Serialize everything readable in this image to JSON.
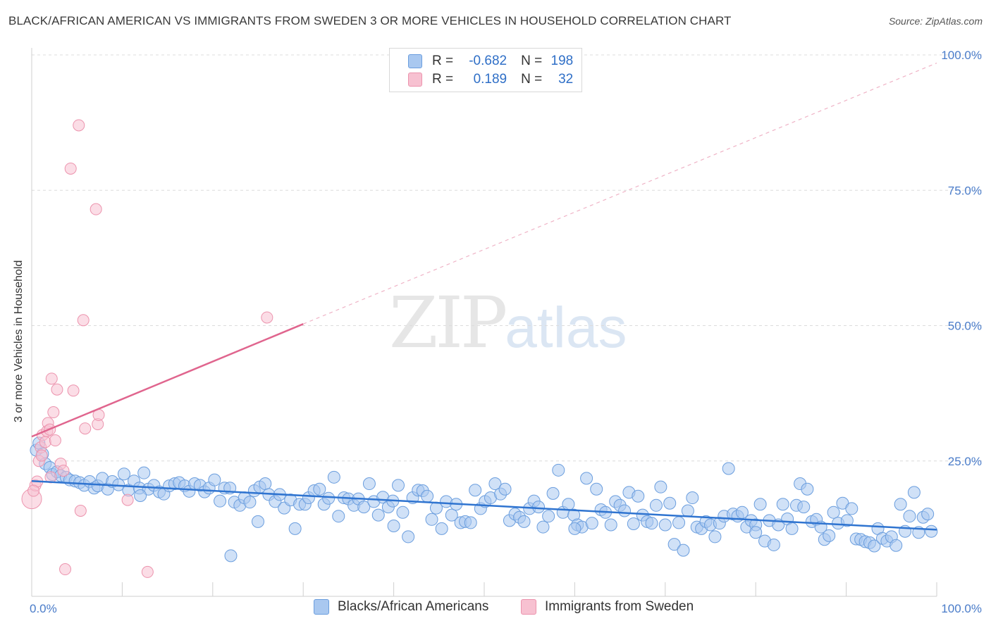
{
  "header": {
    "title": "BLACK/AFRICAN AMERICAN VS IMMIGRANTS FROM SWEDEN 3 OR MORE VEHICLES IN HOUSEHOLD CORRELATION CHART",
    "source": "Source: ZipAtlas.com"
  },
  "watermark": {
    "zip": "ZIP",
    "atlas": "atlas"
  },
  "legend": {
    "r_label": "R =",
    "n_label": "N =",
    "series1": {
      "r": "-0.682",
      "n": "198"
    },
    "series2": {
      "r": "0.189",
      "n": "32"
    }
  },
  "bottom_legend": {
    "series1": "Blacks/African Americans",
    "series2": "Immigrants from Sweden"
  },
  "colors": {
    "blue_fill": "#a9c8f0",
    "blue_stroke": "#6b9ede",
    "blue_line": "#2f74d0",
    "pink_fill": "#f7c1d1",
    "pink_stroke": "#ec93ad",
    "pink_line": "#e0658e",
    "tick_color": "#4a7cc9"
  },
  "chart_data": {
    "type": "scatter",
    "title": "BLACK/AFRICAN AMERICAN VS IMMIGRANTS FROM SWEDEN 3 OR MORE VEHICLES IN HOUSEHOLD CORRELATION CHART",
    "xlabel": "",
    "ylabel": "3 or more Vehicles in Household",
    "xlim": [
      0,
      100
    ],
    "ylim": [
      0,
      100
    ],
    "x_tick_labels": [
      "0.0%",
      "100.0%"
    ],
    "y_tick_labels": [
      "25.0%",
      "50.0%",
      "75.0%",
      "100.0%"
    ],
    "y_ticks": [
      25,
      50,
      75,
      100
    ],
    "series": [
      {
        "name": "Blacks/African Americans",
        "r": -0.682,
        "n": 198,
        "trend": {
          "x": [
            0,
            100
          ],
          "y": [
            21.3,
            12.3
          ]
        },
        "points": [
          [
            0.5,
            27.0
          ],
          [
            0.8,
            28.3
          ],
          [
            1.2,
            26.3
          ],
          [
            1.5,
            24.5
          ],
          [
            2.0,
            23.8
          ],
          [
            2.3,
            22.5
          ],
          [
            2.8,
            23.0
          ],
          [
            3.2,
            22.3
          ],
          [
            3.8,
            22.0
          ],
          [
            4.2,
            21.5
          ],
          [
            4.8,
            21.3
          ],
          [
            5.3,
            21.0
          ],
          [
            5.8,
            20.5
          ],
          [
            6.4,
            21.2
          ],
          [
            6.9,
            20.0
          ],
          [
            7.3,
            20.4
          ],
          [
            7.8,
            21.8
          ],
          [
            8.4,
            19.8
          ],
          [
            8.9,
            21.2
          ],
          [
            9.6,
            20.6
          ],
          [
            10.2,
            22.6
          ],
          [
            10.7,
            19.6
          ],
          [
            11.3,
            21.3
          ],
          [
            11.9,
            20.0
          ],
          [
            12.4,
            22.8
          ],
          [
            12.9,
            19.8
          ],
          [
            13.5,
            20.5
          ],
          [
            14.1,
            19.3
          ],
          [
            14.6,
            18.9
          ],
          [
            15.2,
            20.4
          ],
          [
            15.8,
            20.8
          ],
          [
            16.3,
            21.0
          ],
          [
            16.9,
            20.4
          ],
          [
            17.4,
            19.4
          ],
          [
            18.0,
            20.8
          ],
          [
            18.6,
            20.5
          ],
          [
            19.1,
            19.3
          ],
          [
            19.6,
            20.0
          ],
          [
            20.2,
            21.5
          ],
          [
            20.8,
            17.6
          ],
          [
            21.3,
            20.0
          ],
          [
            21.9,
            20.0
          ],
          [
            22.4,
            17.4
          ],
          [
            23.0,
            16.8
          ],
          [
            23.5,
            18.2
          ],
          [
            24.1,
            17.4
          ],
          [
            24.6,
            19.5
          ],
          [
            25.2,
            20.2
          ],
          [
            25.8,
            20.8
          ],
          [
            26.2,
            18.8
          ],
          [
            26.9,
            17.5
          ],
          [
            27.4,
            18.8
          ],
          [
            27.9,
            16.3
          ],
          [
            28.6,
            17.8
          ],
          [
            29.1,
            12.5
          ],
          [
            29.6,
            17.0
          ],
          [
            30.2,
            17.0
          ],
          [
            30.6,
            18.2
          ],
          [
            31.2,
            19.5
          ],
          [
            31.8,
            19.8
          ],
          [
            32.3,
            17.0
          ],
          [
            32.8,
            18.1
          ],
          [
            33.4,
            22.0
          ],
          [
            33.9,
            14.8
          ],
          [
            34.5,
            18.2
          ],
          [
            35.0,
            18.0
          ],
          [
            35.6,
            16.8
          ],
          [
            36.1,
            18.0
          ],
          [
            36.7,
            16.5
          ],
          [
            37.3,
            20.8
          ],
          [
            37.8,
            17.5
          ],
          [
            38.3,
            15.0
          ],
          [
            38.8,
            18.3
          ],
          [
            39.4,
            16.5
          ],
          [
            39.9,
            17.6
          ],
          [
            40.5,
            20.5
          ],
          [
            41.0,
            15.5
          ],
          [
            41.6,
            11.0
          ],
          [
            42.1,
            18.2
          ],
          [
            42.7,
            19.6
          ],
          [
            43.2,
            19.5
          ],
          [
            43.7,
            18.5
          ],
          [
            44.2,
            14.2
          ],
          [
            44.7,
            16.3
          ],
          [
            45.3,
            12.5
          ],
          [
            45.8,
            17.5
          ],
          [
            46.4,
            15.0
          ],
          [
            46.9,
            17.0
          ],
          [
            47.4,
            13.6
          ],
          [
            47.9,
            13.8
          ],
          [
            48.5,
            13.6
          ],
          [
            49.0,
            19.6
          ],
          [
            49.6,
            16.2
          ],
          [
            50.1,
            17.5
          ],
          [
            50.7,
            18.2
          ],
          [
            51.2,
            20.8
          ],
          [
            51.8,
            18.9
          ],
          [
            52.3,
            19.8
          ],
          [
            52.8,
            14.0
          ],
          [
            53.4,
            15.2
          ],
          [
            53.9,
            14.6
          ],
          [
            54.4,
            13.8
          ],
          [
            55.0,
            16.2
          ],
          [
            55.5,
            17.6
          ],
          [
            56.0,
            16.5
          ],
          [
            56.5,
            12.8
          ],
          [
            57.1,
            14.8
          ],
          [
            57.6,
            19.0
          ],
          [
            58.2,
            23.3
          ],
          [
            58.7,
            15.5
          ],
          [
            59.3,
            17.0
          ],
          [
            59.9,
            15.0
          ],
          [
            60.3,
            13.2
          ],
          [
            60.8,
            12.8
          ],
          [
            61.3,
            21.8
          ],
          [
            61.9,
            13.5
          ],
          [
            62.4,
            19.8
          ],
          [
            62.9,
            16.0
          ],
          [
            63.4,
            15.5
          ],
          [
            64.0,
            13.2
          ],
          [
            64.5,
            17.5
          ],
          [
            65.0,
            16.8
          ],
          [
            65.5,
            15.8
          ],
          [
            66.0,
            19.2
          ],
          [
            66.5,
            13.4
          ],
          [
            67.0,
            18.5
          ],
          [
            67.5,
            15.0
          ],
          [
            68.0,
            13.8
          ],
          [
            68.5,
            13.5
          ],
          [
            69.0,
            16.8
          ],
          [
            69.5,
            20.2
          ],
          [
            70.0,
            13.2
          ],
          [
            70.5,
            17.2
          ],
          [
            71.0,
            9.6
          ],
          [
            71.5,
            13.6
          ],
          [
            72.0,
            8.5
          ],
          [
            72.5,
            15.8
          ],
          [
            73.0,
            18.2
          ],
          [
            73.5,
            12.8
          ],
          [
            74.0,
            12.5
          ],
          [
            74.5,
            13.8
          ],
          [
            75.0,
            13.2
          ],
          [
            75.5,
            11.0
          ],
          [
            76.0,
            13.5
          ],
          [
            76.5,
            14.8
          ],
          [
            77.0,
            23.6
          ],
          [
            77.5,
            15.2
          ],
          [
            78.0,
            14.8
          ],
          [
            78.5,
            15.5
          ],
          [
            79.0,
            12.8
          ],
          [
            79.5,
            14.0
          ],
          [
            80.0,
            13.2
          ],
          [
            80.5,
            17.0
          ],
          [
            81.0,
            10.2
          ],
          [
            81.5,
            14.0
          ],
          [
            82.0,
            9.5
          ],
          [
            82.5,
            13.2
          ],
          [
            83.0,
            17.0
          ],
          [
            83.5,
            14.3
          ],
          [
            84.0,
            12.5
          ],
          [
            84.5,
            16.8
          ],
          [
            84.9,
            20.8
          ],
          [
            85.3,
            16.5
          ],
          [
            85.7,
            19.8
          ],
          [
            86.2,
            13.8
          ],
          [
            86.7,
            14.2
          ],
          [
            87.2,
            12.8
          ],
          [
            87.6,
            10.5
          ],
          [
            88.1,
            11.2
          ],
          [
            88.6,
            15.5
          ],
          [
            89.1,
            13.5
          ],
          [
            89.6,
            17.2
          ],
          [
            90.1,
            14.0
          ],
          [
            90.6,
            16.2
          ],
          [
            91.1,
            10.6
          ],
          [
            91.6,
            10.5
          ],
          [
            92.1,
            10.1
          ],
          [
            92.6,
            9.9
          ],
          [
            93.1,
            9.3
          ],
          [
            93.5,
            12.5
          ],
          [
            94.0,
            10.7
          ],
          [
            94.5,
            10.2
          ],
          [
            95.0,
            11.0
          ],
          [
            95.5,
            9.4
          ],
          [
            96.0,
            17.0
          ],
          [
            96.5,
            12.0
          ],
          [
            97.0,
            14.8
          ],
          [
            97.5,
            19.2
          ],
          [
            98.0,
            11.8
          ],
          [
            98.5,
            14.6
          ],
          [
            99.0,
            15.2
          ],
          [
            99.4,
            12.0
          ],
          [
            25.0,
            13.8
          ],
          [
            40.0,
            13.0
          ],
          [
            60.0,
            12.5
          ],
          [
            80.0,
            11.8
          ],
          [
            22.0,
            7.5
          ],
          [
            12.0,
            18.6
          ]
        ]
      },
      {
        "name": "Immigrants from Sweden",
        "r": 0.189,
        "n": 32,
        "trend_solid": {
          "x": [
            0,
            30
          ],
          "y": [
            29.5,
            50.3
          ]
        },
        "trend_dashed": {
          "x": [
            30,
            100
          ],
          "y": [
            50.3,
            98.5
          ]
        },
        "points": [
          [
            0.0,
            18.0
          ],
          [
            0.4,
            20.5
          ],
          [
            0.6,
            21.2
          ],
          [
            0.8,
            25.0
          ],
          [
            1.0,
            27.5
          ],
          [
            1.2,
            29.8
          ],
          [
            1.5,
            28.5
          ],
          [
            1.7,
            30.5
          ],
          [
            1.8,
            32.0
          ],
          [
            2.0,
            30.8
          ],
          [
            2.2,
            40.2
          ],
          [
            2.4,
            34.0
          ],
          [
            2.6,
            28.8
          ],
          [
            2.8,
            38.2
          ],
          [
            3.2,
            24.5
          ],
          [
            3.5,
            23.2
          ],
          [
            3.7,
            5.0
          ],
          [
            4.3,
            79.0
          ],
          [
            4.6,
            38.0
          ],
          [
            5.2,
            87.0
          ],
          [
            5.4,
            15.8
          ],
          [
            5.7,
            51.0
          ],
          [
            5.9,
            31.0
          ],
          [
            7.1,
            71.5
          ],
          [
            7.3,
            31.8
          ],
          [
            7.4,
            33.5
          ],
          [
            10.6,
            17.8
          ],
          [
            12.8,
            4.5
          ],
          [
            26.0,
            51.5
          ],
          [
            0.2,
            19.5
          ],
          [
            1.1,
            26.0
          ],
          [
            2.1,
            22.0
          ]
        ]
      }
    ]
  }
}
